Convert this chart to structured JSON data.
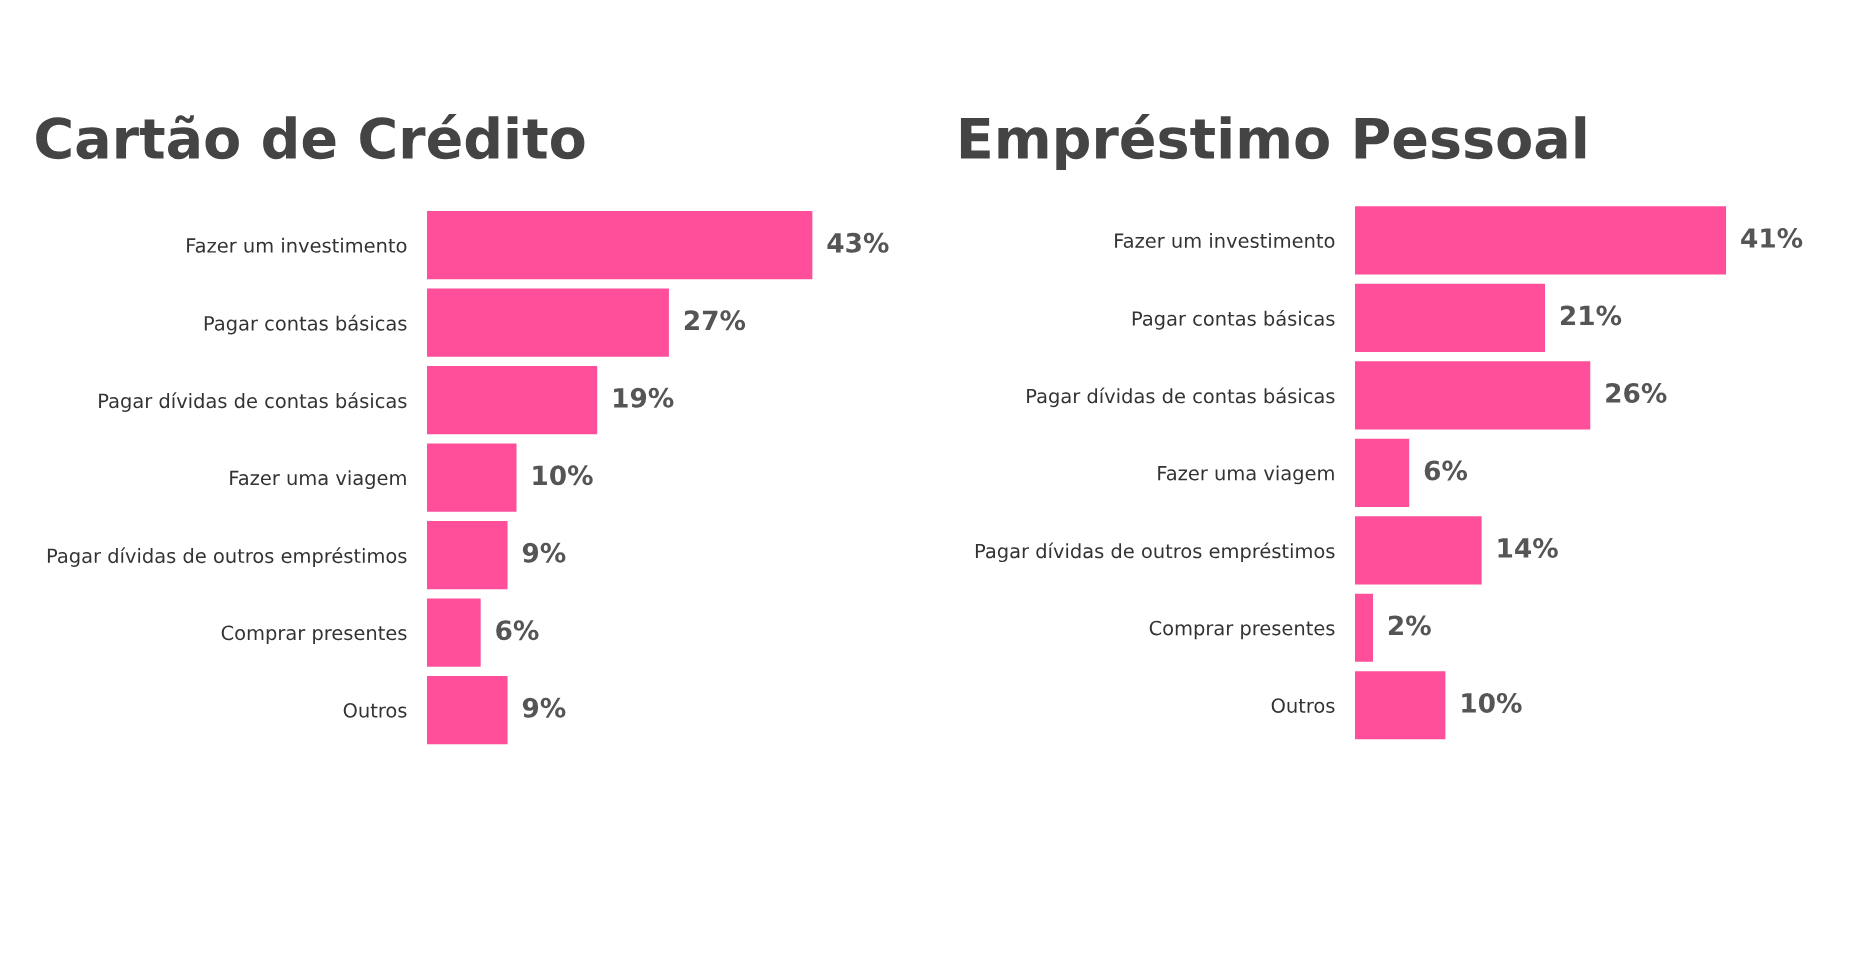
{
  "chart_data": [
    {
      "type": "bar",
      "orientation": "horizontal",
      "title": "Cartão de Crédito",
      "color": "#ff4f9a",
      "categories": [
        "Fazer um investimento",
        "Pagar contas básicas",
        "Pagar dívidas de contas básicas",
        "Fazer uma viagem",
        "Pagar dívidas de outros empréstimos",
        "Comprar presentes",
        "Outros"
      ],
      "values": [
        43,
        27,
        19,
        10,
        9,
        6,
        9
      ],
      "value_labels": [
        "43%",
        "27%",
        "19%",
        "10%",
        "9%",
        "6%",
        "9%"
      ]
    },
    {
      "type": "bar",
      "orientation": "horizontal",
      "title": "Empréstimo Pessoal",
      "color": "#ff4f9a",
      "categories": [
        "Fazer um investimento",
        "Pagar contas básicas",
        "Pagar dívidas de contas básicas",
        "Fazer uma viagem",
        "Pagar dívidas de outros empréstimos",
        "Comprar presentes",
        "Outros"
      ],
      "values": [
        41,
        21,
        26,
        6,
        14,
        2,
        10
      ],
      "value_labels": [
        "41%",
        "21%",
        "26%",
        "6%",
        "14%",
        "2%",
        "10%"
      ]
    }
  ]
}
